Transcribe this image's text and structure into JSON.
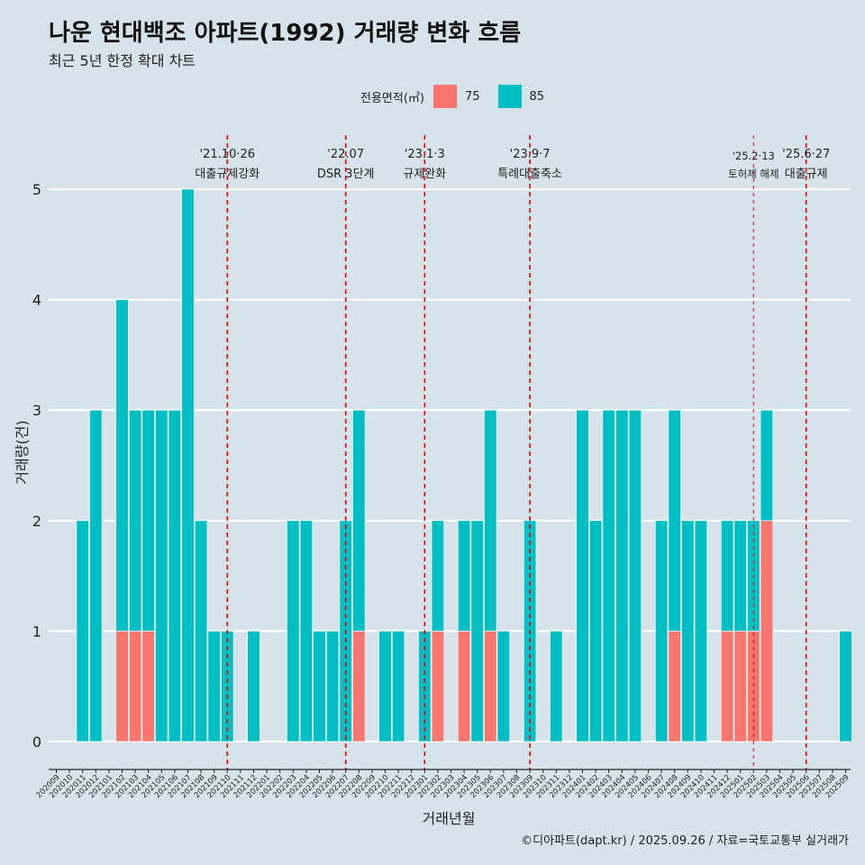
{
  "title": "나운 현대백조 아파트(1992) 거래량 변화 흐름",
  "subtitle": "최근 5년 한정 확대 차트",
  "legend": {
    "title": "전용면적(㎡)",
    "entries": [
      {
        "label": "75",
        "color": "#F8766D"
      },
      {
        "label": "85",
        "color": "#00BFC4"
      }
    ]
  },
  "caption": "©디아파트(dapt.kr) / 2025.09.26 / 자료=국토교통부 실거래가",
  "chart_data": {
    "type": "bar",
    "title": "나운 현대백조 아파트(1992) 거래량 변화 흐름",
    "xlabel": "거래년월",
    "ylabel": "거래량(건)",
    "ylim": [
      -0.2,
      5.3
    ],
    "yticks": [
      0,
      1,
      2,
      3,
      4,
      5
    ],
    "grid": true,
    "categories": [
      "202009",
      "202010",
      "202011",
      "202012",
      "202101",
      "202102",
      "202103",
      "202104",
      "202105",
      "202106",
      "202107",
      "202108",
      "202109",
      "202110",
      "202111",
      "202112",
      "202201",
      "202202",
      "202203",
      "202204",
      "202205",
      "202206",
      "202207",
      "202208",
      "202209",
      "202210",
      "202211",
      "202212",
      "202301",
      "202302",
      "202303",
      "202304",
      "202305",
      "202306",
      "202307",
      "202308",
      "202309",
      "202310",
      "202311",
      "202312",
      "202401",
      "202402",
      "202403",
      "202404",
      "202405",
      "202406",
      "202407",
      "202408",
      "202409",
      "202410",
      "202411",
      "202412",
      "202501",
      "202502",
      "202503",
      "202504",
      "202505",
      "202506",
      "202507",
      "202508",
      "202509"
    ],
    "series": [
      {
        "name": "75",
        "color": "#F8766D",
        "values": [
          0,
          0,
          0,
          0,
          0,
          1,
          1,
          1,
          0,
          0,
          0,
          0,
          0,
          0,
          0,
          0,
          0,
          0,
          0,
          0,
          0,
          0,
          0,
          1,
          0,
          0,
          0,
          0,
          0,
          1,
          0,
          1,
          0,
          1,
          0,
          0,
          0,
          0,
          0,
          0,
          0,
          0,
          0,
          0,
          0,
          0,
          0,
          1,
          0,
          0,
          0,
          1,
          1,
          1,
          2,
          0,
          0,
          0,
          0,
          0,
          0
        ]
      },
      {
        "name": "85",
        "color": "#00BFC4",
        "values": [
          0,
          0,
          2,
          3,
          0,
          3,
          2,
          2,
          3,
          3,
          5,
          2,
          1,
          1,
          0,
          1,
          0,
          0,
          2,
          2,
          1,
          1,
          2,
          2,
          0,
          1,
          1,
          0,
          1,
          1,
          0,
          1,
          2,
          2,
          1,
          0,
          2,
          0,
          1,
          0,
          3,
          2,
          3,
          3,
          3,
          0,
          2,
          2,
          2,
          2,
          0,
          1,
          1,
          1,
          1,
          0,
          0,
          0,
          0,
          0,
          1
        ]
      }
    ],
    "events": [
      {
        "date": "'21.10·26",
        "label": "대출규제강화",
        "category": "202110",
        "emphasis": "major"
      },
      {
        "date": "'22.07",
        "label": "DSR 3단계",
        "category": "202207",
        "emphasis": "major"
      },
      {
        "date": "'23.1·3",
        "label": "규제완화",
        "category": "202301",
        "emphasis": "major"
      },
      {
        "date": "'23.9·7",
        "label": "특례대출축소",
        "category": "202309",
        "emphasis": "major"
      },
      {
        "date": "'25.2·13",
        "label": "토허제 해제",
        "category": "202502",
        "emphasis": "minor"
      },
      {
        "date": "'25.6·27",
        "label": "대출규제",
        "category": "202506",
        "emphasis": "major"
      }
    ]
  }
}
